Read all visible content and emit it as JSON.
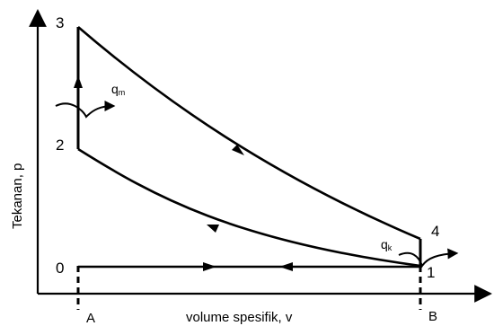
{
  "axes": {
    "y_label": "Tekanan, p",
    "x_label": "volume spesifik, v"
  },
  "points": [
    "3",
    "2",
    "0",
    "4",
    "1"
  ],
  "markers": {
    "left": "A",
    "right": "B"
  },
  "heat": {
    "in_symbol": "q",
    "in_sub": "m",
    "out_symbol": "q",
    "out_sub": "k"
  },
  "colors": {
    "stroke": "#000000",
    "background": "#ffffff"
  }
}
